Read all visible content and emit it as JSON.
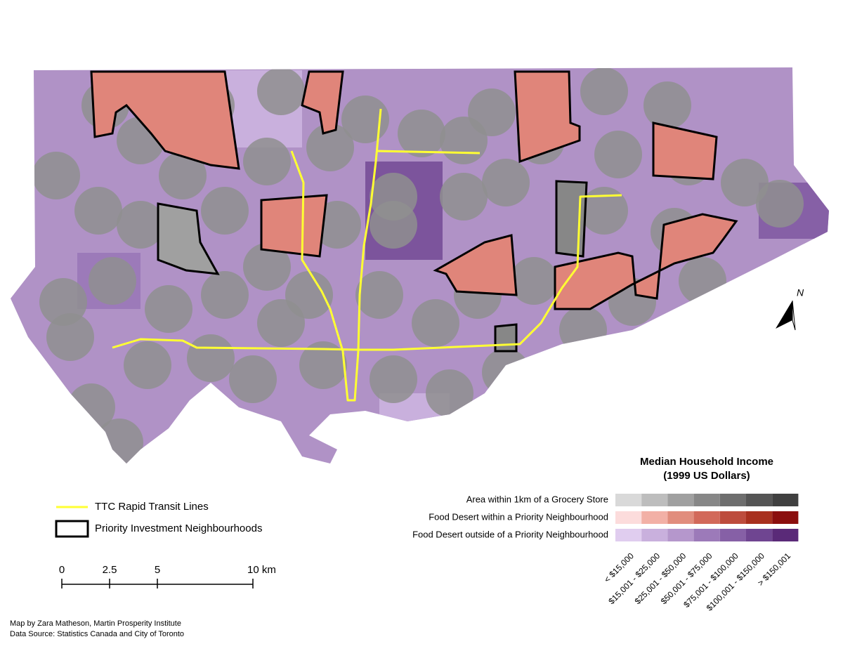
{
  "legend": {
    "title": "Median Household Income",
    "subtitle": "(1999 US Dollars)",
    "rows": [
      {
        "label": "Area within 1km of a Grocery Store",
        "colors": [
          "#d9d9d9",
          "#bdbdbd",
          "#a0a0a0",
          "#878787",
          "#6e6e6e",
          "#555555",
          "#404040"
        ]
      },
      {
        "label": "Food Desert within a Priority Neighbourhood",
        "colors": [
          "#fcdcdc",
          "#f2b0a6",
          "#e18d7d",
          "#d2695a",
          "#bd4c3d",
          "#a8301f",
          "#8b0e0e"
        ]
      },
      {
        "label": "Food Desert outside of a Priority Neighbourhood",
        "colors": [
          "#e0cdef",
          "#c9b0dd",
          "#b597cc",
          "#9c7ab9",
          "#8660a6",
          "#6f4591",
          "#5a2a78"
        ]
      }
    ],
    "classes": [
      "< $15,000",
      "$15,001 - $25,000",
      "$25,001 - $50,000",
      "$50,001 - $75,000",
      "$75,001 - $100,000",
      "$100,001 - $150,000",
      "> $150,001"
    ]
  },
  "line_legend": [
    {
      "label": "TTC Rapid Transit Lines",
      "color": "#ffff33"
    },
    {
      "label": "Priority Investment Neighbourhoods",
      "color": "#000000"
    }
  ],
  "scale_bar": {
    "range": [
      0,
      10
    ],
    "ticks": [
      0,
      2.5,
      5,
      {
        "value": 10,
        "label": "10 km"
      }
    ]
  },
  "north_arrow": "N",
  "credits": [
    "Map by Zara Matheson, Martin Prosperity Institute",
    "Data Source: Statistics Canada and City of Toronto"
  ]
}
